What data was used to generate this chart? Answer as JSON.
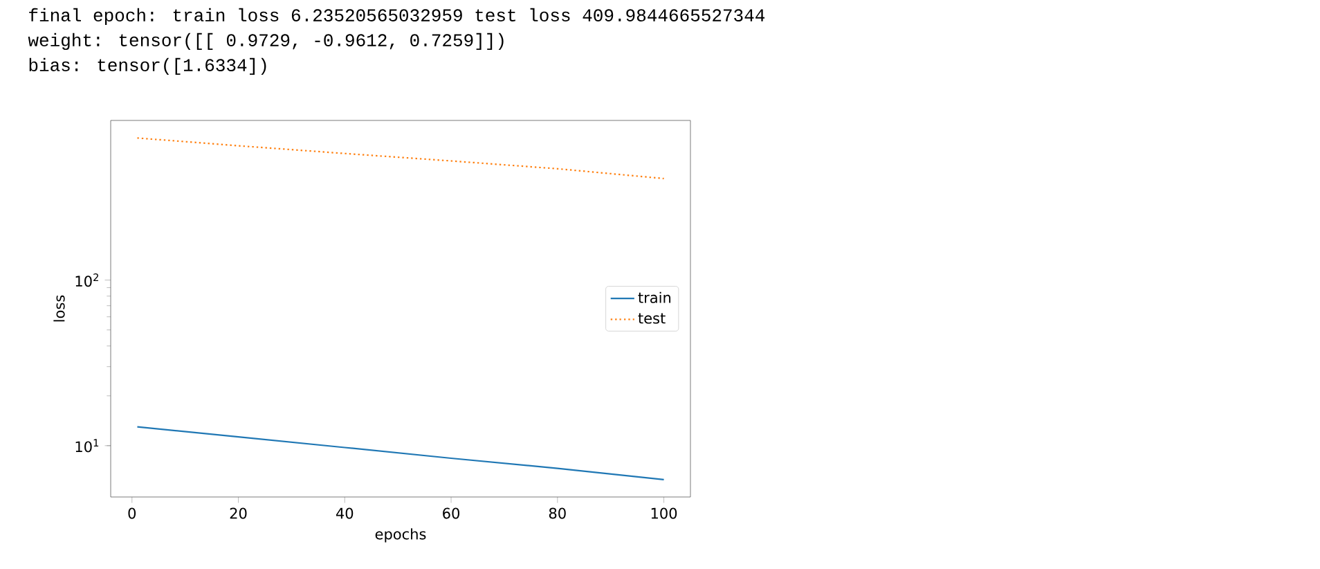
{
  "chart_data": {
    "type": "line",
    "annotations": [
      "final epoch: train loss 6.23520565032959 test loss 409.9844665527344",
      "weight: tensor([[ 0.9729, -0.9612,  0.7259]])",
      "bias: tensor([1.6334])"
    ],
    "xlabel": "epochs",
    "ylabel": "loss",
    "x": [
      1,
      20,
      40,
      60,
      80,
      100
    ],
    "series": [
      {
        "name": "train",
        "color": "#1f77b4",
        "line_style": "solid",
        "values": [
          13.0,
          11.3,
          9.75,
          8.4,
          7.3,
          6.24
        ]
      },
      {
        "name": "test",
        "color": "#ff7f0e",
        "line_style": "dotted",
        "values": [
          721,
          647,
          581,
          524,
          470,
          410
        ]
      }
    ],
    "log": "y",
    "xlim": [
      -4,
      105
    ],
    "ylim": [
      4.9,
      920
    ],
    "xticks": [
      0,
      20,
      40,
      60,
      80,
      100
    ],
    "yticks": [
      {
        "value": 10,
        "label": "10$^{1}$"
      },
      {
        "value": 100,
        "label": "10$^{2}$"
      }
    ],
    "grid": false,
    "legend": "center right",
    "marker": "none"
  }
}
